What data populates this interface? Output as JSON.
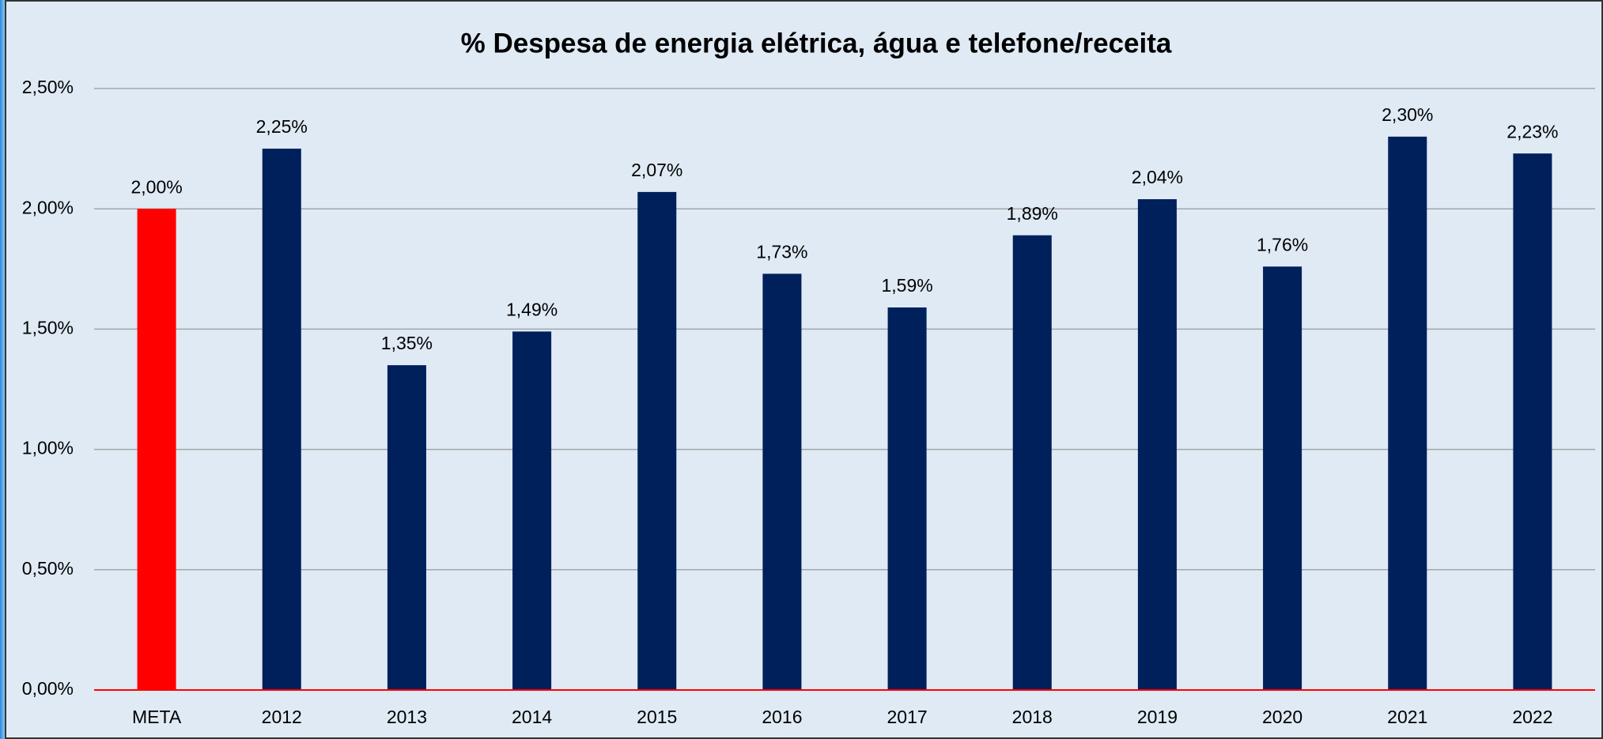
{
  "chart_data": {
    "type": "bar",
    "title": "% Despesa de energia elétrica, água e telefone/receita",
    "categories": [
      "META",
      "2012",
      "2013",
      "2014",
      "2015",
      "2016",
      "2017",
      "2018",
      "2019",
      "2020",
      "2021",
      "2022"
    ],
    "values": [
      2.0,
      2.25,
      1.35,
      1.49,
      2.07,
      1.73,
      1.59,
      1.89,
      2.04,
      1.76,
      2.3,
      2.23
    ],
    "value_labels": [
      "2,00%",
      "2,25%",
      "1,35%",
      "1,49%",
      "2,07%",
      "1,73%",
      "1,59%",
      "1,89%",
      "2,04%",
      "1,76%",
      "2,30%",
      "2,23%"
    ],
    "colors": [
      "#ff0000",
      "#00205b",
      "#00205b",
      "#00205b",
      "#00205b",
      "#00205b",
      "#00205b",
      "#00205b",
      "#00205b",
      "#00205b",
      "#00205b",
      "#00205b"
    ],
    "ylim": [
      0,
      2.5
    ],
    "yticks": [
      {
        "value": 0,
        "label": "0,00%"
      },
      {
        "value": 0.5,
        "label": "0,50%"
      },
      {
        "value": 1,
        "label": "1,00%"
      },
      {
        "value": 1.5,
        "label": "1,50%"
      },
      {
        "value": 2,
        "label": "2,00%"
      },
      {
        "value": 2.5,
        "label": "2,50%"
      }
    ],
    "grid": true,
    "baseline_color": "#ff0000"
  }
}
